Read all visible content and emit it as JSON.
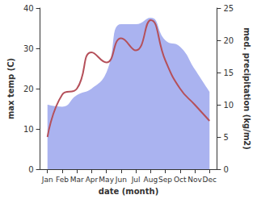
{
  "chart_data": {
    "type": "line",
    "x_label": "date (month)",
    "y_label": "max temp (C)",
    "y2_label": "med. precipitation (kg/m2)",
    "categories": [
      "Jan",
      "Feb",
      "Mar",
      "Apr",
      "May",
      "Jun",
      "Jul",
      "Aug",
      "Sep",
      "Oct",
      "Nov",
      "Dec"
    ],
    "series": [
      {
        "name": "med. precipitation",
        "type": "area",
        "axis": "y2",
        "color": "#aab3f0",
        "values": [
          10,
          9.7,
          11.5,
          12.5,
          15,
          22.5,
          22.5,
          23.5,
          20,
          19,
          15.5,
          12
        ]
      },
      {
        "name": "max temp",
        "type": "line",
        "color": "#b5505a",
        "values": [
          8,
          18.5,
          20,
          29,
          26.5,
          32.5,
          29.5,
          37,
          27,
          20,
          16,
          12
        ]
      }
    ],
    "ylim": [
      0,
      40
    ],
    "yticks": [
      0,
      10,
      20,
      30,
      40
    ],
    "y2lim": [
      0,
      25
    ],
    "y2ticks": [
      0,
      5,
      10,
      15,
      20,
      25
    ],
    "grid": false
  }
}
